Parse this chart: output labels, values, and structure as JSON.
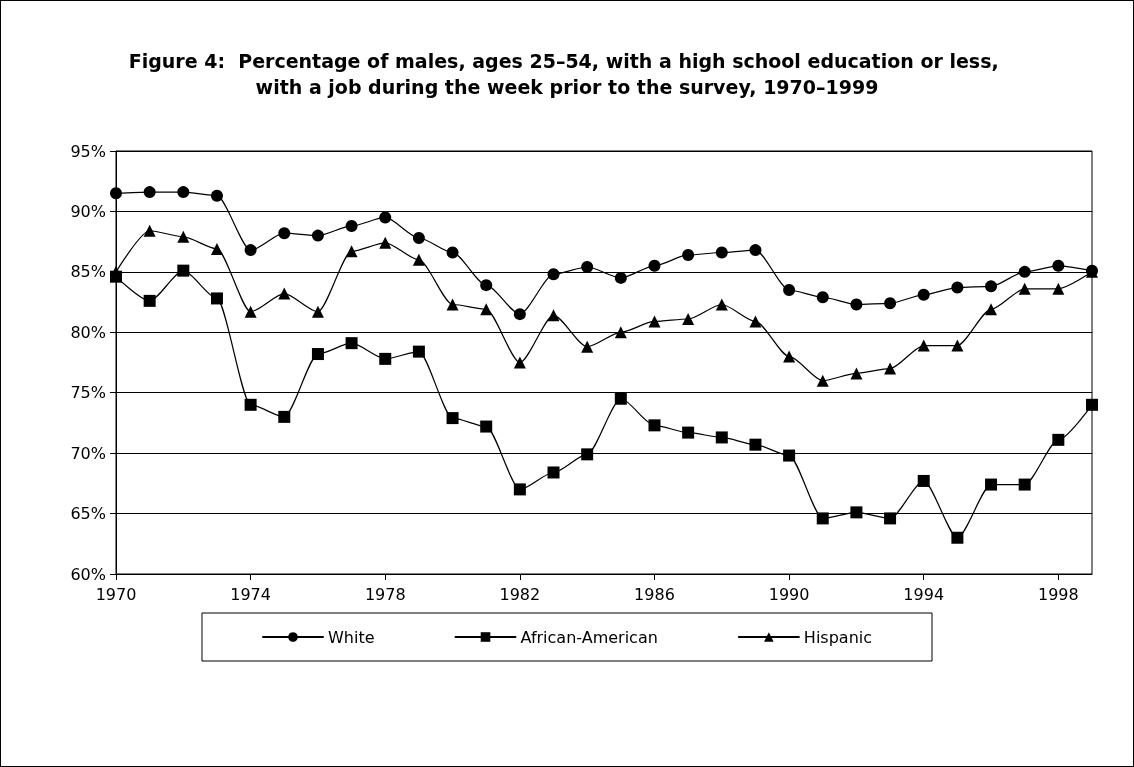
{
  "chart_data": {
    "type": "line",
    "title": "Figure 4:  Percentage of males, ages 25–54, with a high school education or less, with a job during the week prior to the survey, 1970–1999",
    "x": [
      1970,
      1971,
      1972,
      1973,
      1974,
      1975,
      1976,
      1977,
      1978,
      1979,
      1980,
      1981,
      1982,
      1983,
      1984,
      1985,
      1986,
      1987,
      1988,
      1989,
      1990,
      1991,
      1992,
      1993,
      1994,
      1995,
      1996,
      1997,
      1998,
      1999
    ],
    "series": [
      {
        "name": "White",
        "color": "#000000",
        "marker": "circle",
        "values": [
          91.5,
          91.6,
          91.6,
          91.3,
          86.8,
          88.2,
          88.0,
          88.8,
          89.5,
          87.8,
          86.6,
          83.9,
          81.5,
          84.8,
          85.4,
          84.5,
          85.5,
          86.4,
          86.6,
          86.8,
          83.5,
          82.9,
          82.3,
          82.4,
          83.1,
          83.7,
          83.8,
          85.0,
          85.5,
          85.1
        ]
      },
      {
        "name": "African-American",
        "color": "#000000",
        "marker": "square",
        "values": [
          84.6,
          82.6,
          85.1,
          82.8,
          74.0,
          73.0,
          78.2,
          79.1,
          77.8,
          78.4,
          72.9,
          72.2,
          67.0,
          68.4,
          69.9,
          74.5,
          72.3,
          71.7,
          71.3,
          70.7,
          69.8,
          64.6,
          65.1,
          64.6,
          67.7,
          63.0,
          67.4,
          67.4,
          71.1,
          74.0
        ]
      },
      {
        "name": "Hispanic",
        "color": "#000000",
        "marker": "triangle",
        "values": [
          85.0,
          88.4,
          87.9,
          86.9,
          81.7,
          83.2,
          81.7,
          86.7,
          87.4,
          86.0,
          82.3,
          81.9,
          77.5,
          81.4,
          78.8,
          80.0,
          80.9,
          81.1,
          82.3,
          80.9,
          78.0,
          76.0,
          76.6,
          77.0,
          78.9,
          78.9,
          81.9,
          83.6,
          83.6,
          85.0
        ]
      }
    ],
    "xlim": [
      1970,
      1999
    ],
    "xticks": [
      1970,
      1974,
      1978,
      1982,
      1986,
      1990,
      1994,
      1998
    ],
    "ylim": [
      60,
      95
    ],
    "yticks": [
      {
        "value": 60,
        "label": "60%"
      },
      {
        "value": 65,
        "label": "65%"
      },
      {
        "value": 70,
        "label": "70%"
      },
      {
        "value": 75,
        "label": "75%"
      },
      {
        "value": 80,
        "label": "80%"
      },
      {
        "value": 85,
        "label": "85%"
      },
      {
        "value": 90,
        "label": "90%"
      },
      {
        "value": 95,
        "label": "95%"
      }
    ],
    "grid": "y",
    "legend": "bottom",
    "line_style": "solid"
  }
}
